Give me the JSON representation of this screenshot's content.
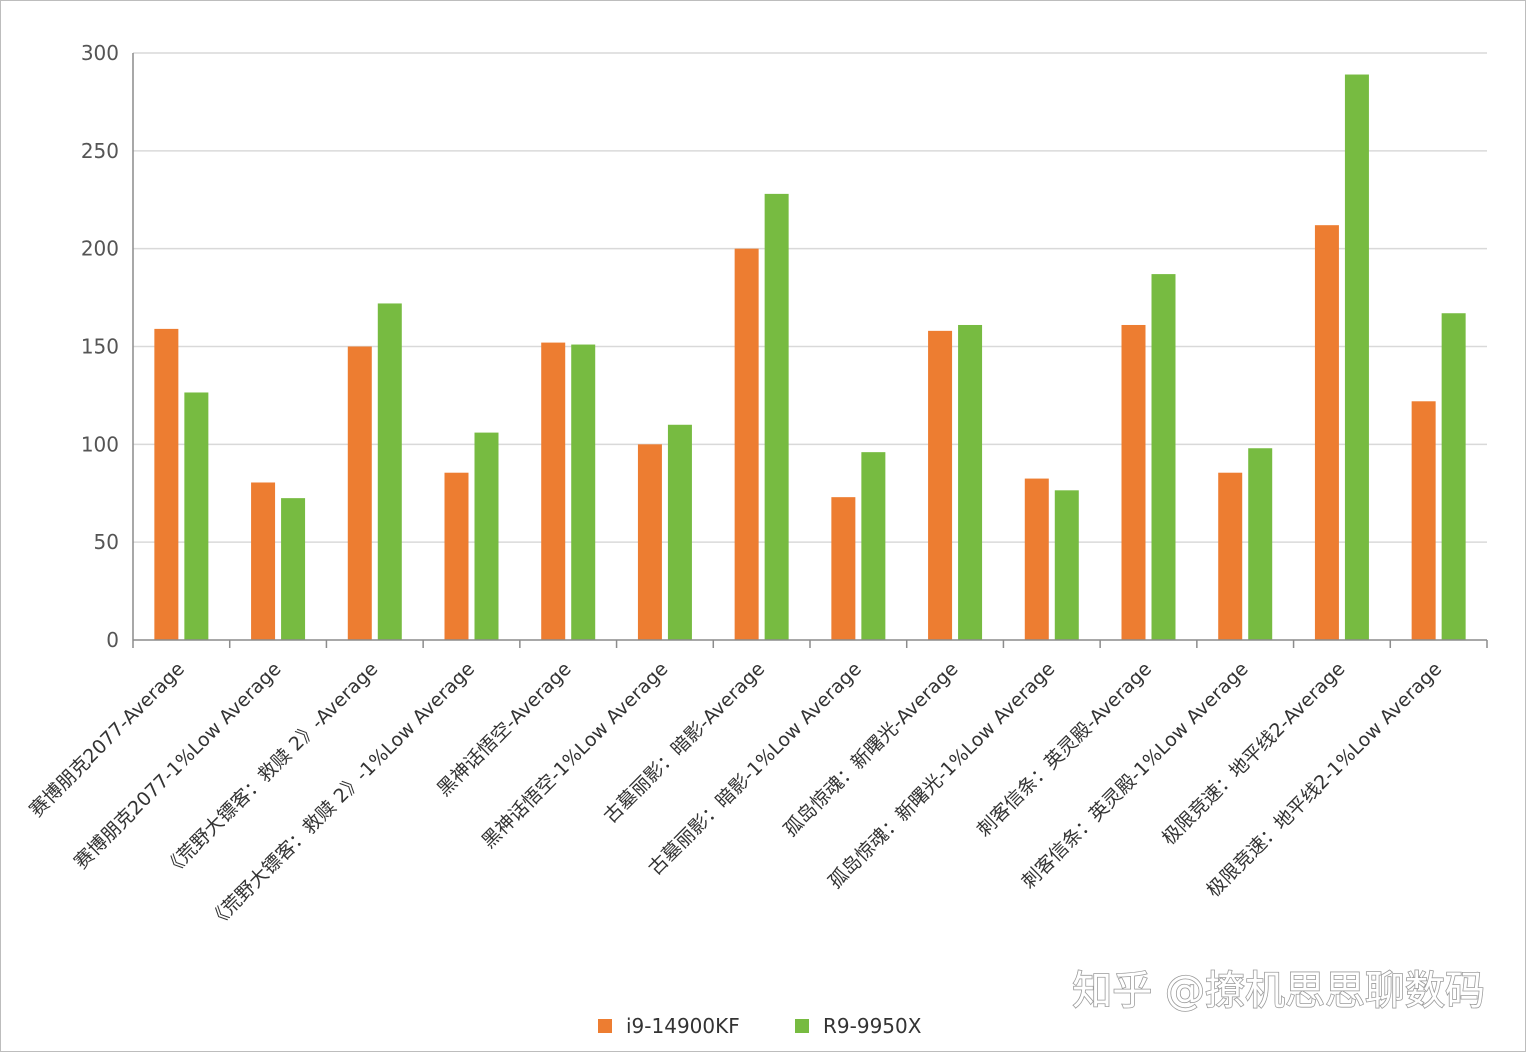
{
  "chart_data": {
    "type": "bar",
    "categories": [
      "赛博朋克2077-Average",
      "赛博朋克2077-1%Low Average",
      "《荒野大镖客：救赎 2》-Average",
      "《荒野大镖客：救赎 2》-1%Low Average",
      "黑神话悟空-Average",
      "黑神话悟空-1%Low Average",
      "古墓丽影：暗影-Average",
      "古墓丽影：暗影-1%Low Average",
      "孤岛惊魂：新曙光-Average",
      "孤岛惊魂：新曙光-1%Low Average",
      "刺客信条：英灵殿-Average",
      "刺客信条：英灵殿-1%Low Average",
      "极限竞速：地平线2-Average",
      "极限竞速：地平线2-1%Low Average"
    ],
    "series": [
      {
        "name": "i9-14900KF",
        "color": "#ed7d31",
        "values": [
          159,
          80.5,
          150,
          85.5,
          152,
          100,
          200,
          73,
          158,
          82.5,
          161,
          85.5,
          212,
          122
        ]
      },
      {
        "name": "R9-9950X",
        "color": "#77bb41",
        "values": [
          126.5,
          72.5,
          172,
          106,
          151,
          110,
          228,
          96,
          161,
          76.5,
          187,
          98,
          289,
          167
        ]
      }
    ],
    "ylim": [
      0,
      300
    ],
    "yticks": [
      0,
      50,
      100,
      150,
      200,
      250,
      300
    ],
    "grid": true,
    "legend": "bottom-center",
    "xlabel": "",
    "ylabel": ""
  },
  "watermark": "知乎 @撩机思思聊数码"
}
